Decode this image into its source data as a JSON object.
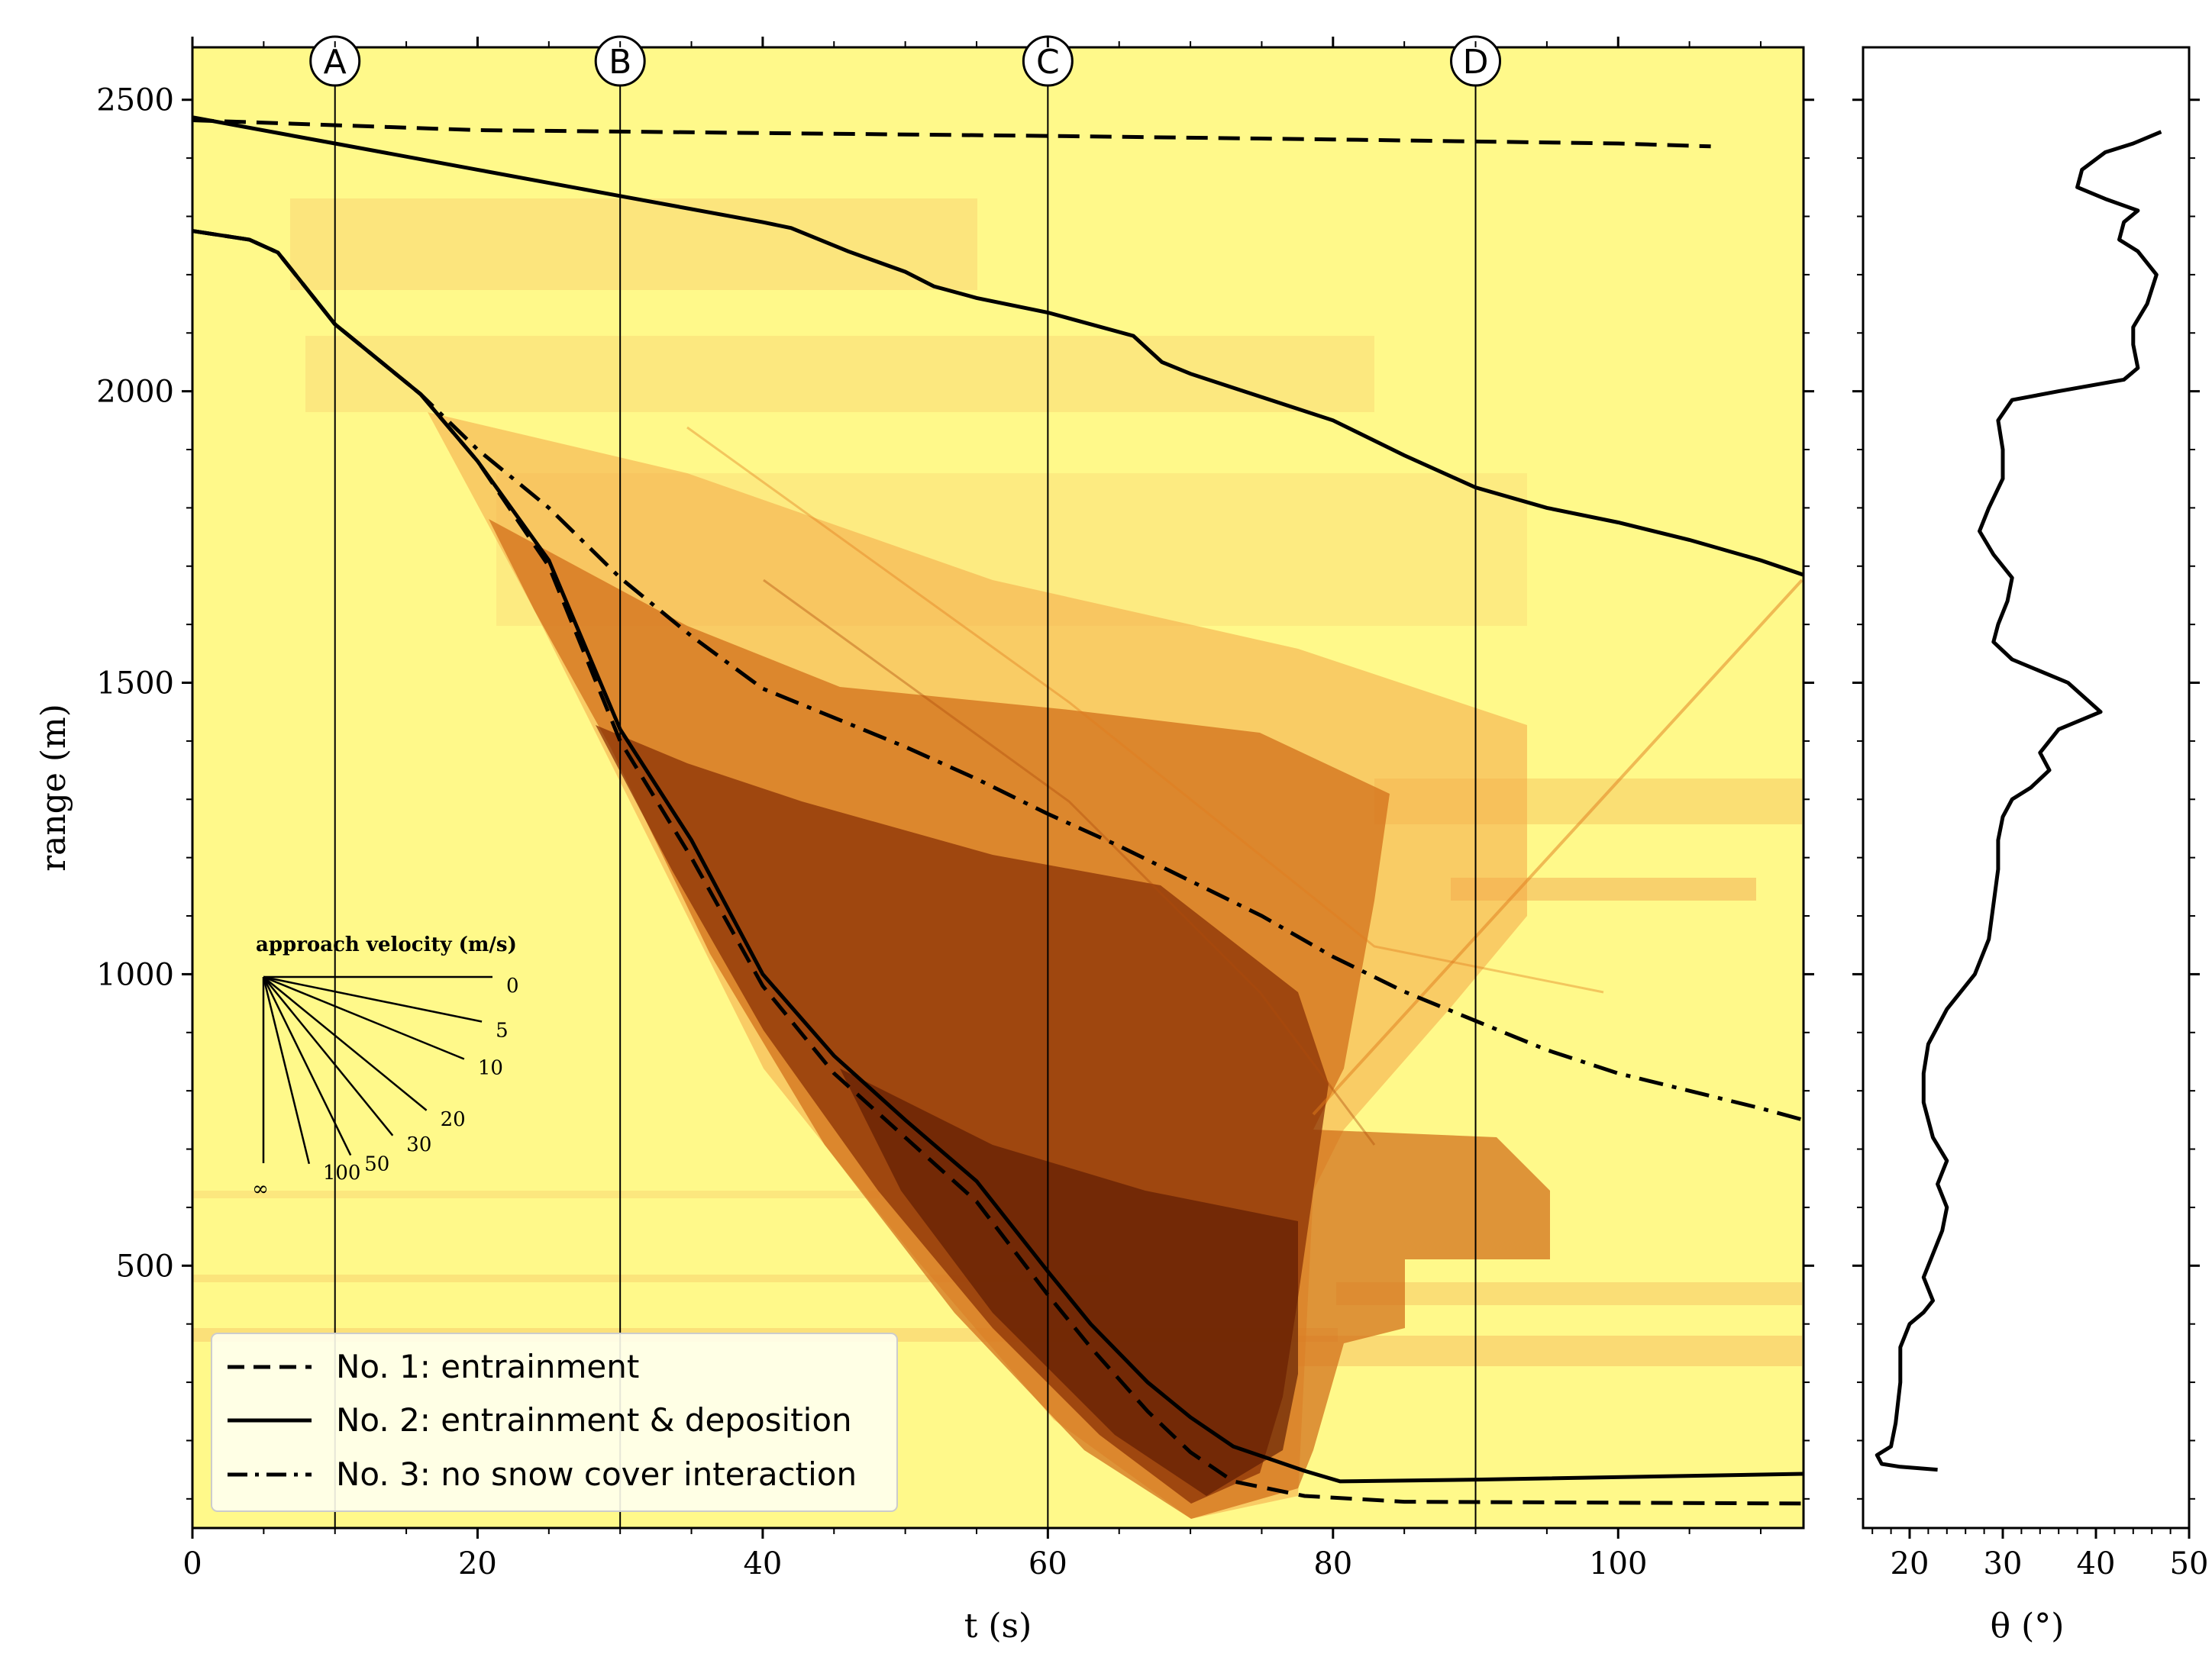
{
  "chart_data": [
    {
      "type": "line",
      "panel": "main",
      "title": "",
      "xlabel": "t (s)",
      "ylabel": "range (m)",
      "xlim": [
        0,
        113
      ],
      "ylim": [
        50,
        2590
      ],
      "xticks": [
        0,
        20,
        40,
        60,
        80,
        100
      ],
      "yticks": [
        500,
        1000,
        1500,
        2000,
        2500
      ],
      "background": "range-time radar intensity heatmap (light yellow to dark brown)",
      "markers": [
        {
          "label": "A",
          "t": 10
        },
        {
          "label": "B",
          "t": 30
        },
        {
          "label": "C",
          "t": 60
        },
        {
          "label": "D",
          "t": 90
        }
      ],
      "series": [
        {
          "name": "No. 1: entrainment",
          "style": "dashed",
          "front": [
            [
              0,
              2465
            ],
            [
              20,
              2448
            ],
            [
              40,
              2443
            ],
            [
              60,
              2438
            ],
            [
              80,
              2432
            ],
            [
              100,
              2425
            ],
            [
              106.5,
              2420
            ]
          ],
          "tail": [
            [
              0,
              2275
            ],
            [
              4,
              2260
            ],
            [
              6,
              2238
            ],
            [
              10,
              2115
            ],
            [
              16,
              1995
            ],
            [
              20,
              1880
            ],
            [
              25,
              1700
            ],
            [
              30,
              1400
            ],
            [
              35,
              1200
            ],
            [
              40,
              980
            ],
            [
              45,
              830
            ],
            [
              50,
              720
            ],
            [
              55,
              610
            ],
            [
              60,
              450
            ],
            [
              63,
              360
            ],
            [
              67,
              250
            ],
            [
              70,
              180
            ],
            [
              73,
              130
            ],
            [
              78,
              105
            ],
            [
              85,
              95
            ],
            [
              113,
              92
            ]
          ]
        },
        {
          "name": "No. 2: entrainment & deposition",
          "style": "solid",
          "front": [
            [
              0,
              2470
            ],
            [
              10,
              2425
            ],
            [
              20,
              2380
            ],
            [
              30,
              2335
            ],
            [
              40,
              2290
            ],
            [
              42,
              2280
            ],
            [
              46,
              2240
            ],
            [
              50,
              2205
            ],
            [
              52,
              2180
            ],
            [
              55,
              2160
            ],
            [
              60,
              2135
            ],
            [
              66,
              2095
            ],
            [
              68,
              2050
            ],
            [
              70,
              2030
            ],
            [
              75,
              1990
            ],
            [
              80,
              1950
            ],
            [
              85,
              1890
            ],
            [
              90,
              1835
            ],
            [
              95,
              1800
            ],
            [
              100,
              1775
            ],
            [
              105,
              1745
            ],
            [
              110,
              1710
            ],
            [
              113,
              1685
            ]
          ],
          "tail": [
            [
              0,
              2275
            ],
            [
              4,
              2260
            ],
            [
              6,
              2238
            ],
            [
              10,
              2115
            ],
            [
              16,
              1995
            ],
            [
              20,
              1880
            ],
            [
              25,
              1710
            ],
            [
              30,
              1420
            ],
            [
              35,
              1230
            ],
            [
              40,
              1000
            ],
            [
              45,
              860
            ],
            [
              50,
              750
            ],
            [
              55,
              645
            ],
            [
              60,
              490
            ],
            [
              63,
              400
            ],
            [
              67,
              300
            ],
            [
              70,
              240
            ],
            [
              73,
              190
            ],
            [
              78,
              148
            ],
            [
              80.5,
              130
            ],
            [
              90,
              133
            ],
            [
              113,
              143
            ]
          ]
        },
        {
          "name": "No. 3: no snow cover interaction",
          "style": "dash-dot",
          "tail": [
            [
              0,
              2275
            ],
            [
              4,
              2260
            ],
            [
              6,
              2238
            ],
            [
              10,
              2115
            ],
            [
              16,
              1995
            ],
            [
              20,
              1900
            ],
            [
              25,
              1800
            ],
            [
              30,
              1680
            ],
            [
              35,
              1580
            ],
            [
              40,
              1490
            ],
            [
              45,
              1440
            ],
            [
              50,
              1390
            ],
            [
              55,
              1335
            ],
            [
              60,
              1275
            ],
            [
              65,
              1220
            ],
            [
              70,
              1160
            ],
            [
              75,
              1100
            ],
            [
              80,
              1030
            ],
            [
              85,
              970
            ],
            [
              90,
              920
            ],
            [
              95,
              870
            ],
            [
              100,
              830
            ],
            [
              105,
              800
            ],
            [
              110,
              770
            ],
            [
              113,
              750
            ]
          ]
        }
      ],
      "legend": {
        "placement": "lower-left",
        "entries": [
          {
            "label": "No. 1: entrainment",
            "style": "dashed"
          },
          {
            "label": "No. 2: entrainment & deposition",
            "style": "solid"
          },
          {
            "label": "No. 3: no snow cover interaction",
            "style": "dash-dot"
          }
        ]
      },
      "approach_velocity_key": {
        "title": "approach velocity (m/s)",
        "labels": [
          "0",
          "5",
          "10",
          "20",
          "30",
          "50",
          "100",
          "∞"
        ]
      }
    },
    {
      "type": "line",
      "panel": "slope",
      "xlabel": "θ (°)",
      "ylabel": "",
      "xlim": [
        15,
        50
      ],
      "ylim": [
        50,
        2590
      ],
      "xticks": [
        20,
        30,
        40,
        50
      ],
      "series": [
        {
          "name": "slope angle",
          "points": [
            [
              23,
              150
            ],
            [
              19,
              155
            ],
            [
              17,
              160
            ],
            [
              16.5,
              175
            ],
            [
              18,
              190
            ],
            [
              18.5,
              230
            ],
            [
              19,
              300
            ],
            [
              19,
              360
            ],
            [
              20,
              400
            ],
            [
              21.5,
              420
            ],
            [
              22.5,
              440
            ],
            [
              21.5,
              480
            ],
            [
              22.5,
              520
            ],
            [
              23.5,
              560
            ],
            [
              24,
              600
            ],
            [
              23,
              640
            ],
            [
              24,
              680
            ],
            [
              22.5,
              720
            ],
            [
              21.5,
              780
            ],
            [
              21.5,
              830
            ],
            [
              22,
              880
            ],
            [
              24,
              940
            ],
            [
              27,
              1000
            ],
            [
              28.5,
              1060
            ],
            [
              29,
              1120
            ],
            [
              29.5,
              1180
            ],
            [
              29.5,
              1230
            ],
            [
              30,
              1270
            ],
            [
              31,
              1300
            ],
            [
              33,
              1320
            ],
            [
              35,
              1350
            ],
            [
              34,
              1380
            ],
            [
              36,
              1420
            ],
            [
              40.5,
              1450
            ],
            [
              37,
              1500
            ],
            [
              31,
              1540
            ],
            [
              29,
              1570
            ],
            [
              29.5,
              1600
            ],
            [
              30.5,
              1640
            ],
            [
              31,
              1680
            ],
            [
              29,
              1720
            ],
            [
              27.5,
              1760
            ],
            [
              28.5,
              1800
            ],
            [
              30,
              1850
            ],
            [
              30,
              1900
            ],
            [
              29.5,
              1950
            ],
            [
              31,
              1985
            ],
            [
              36,
              2000
            ],
            [
              43,
              2020
            ],
            [
              44.5,
              2040
            ],
            [
              44,
              2080
            ],
            [
              44,
              2110
            ],
            [
              45.5,
              2150
            ],
            [
              46.5,
              2200
            ],
            [
              44.5,
              2240
            ],
            [
              42.5,
              2260
            ],
            [
              43,
              2290
            ],
            [
              44.5,
              2310
            ],
            [
              41,
              2330
            ],
            [
              38,
              2350
            ],
            [
              38.5,
              2380
            ],
            [
              41,
              2410
            ],
            [
              44,
              2425
            ],
            [
              47,
              2445
            ]
          ]
        }
      ]
    }
  ]
}
